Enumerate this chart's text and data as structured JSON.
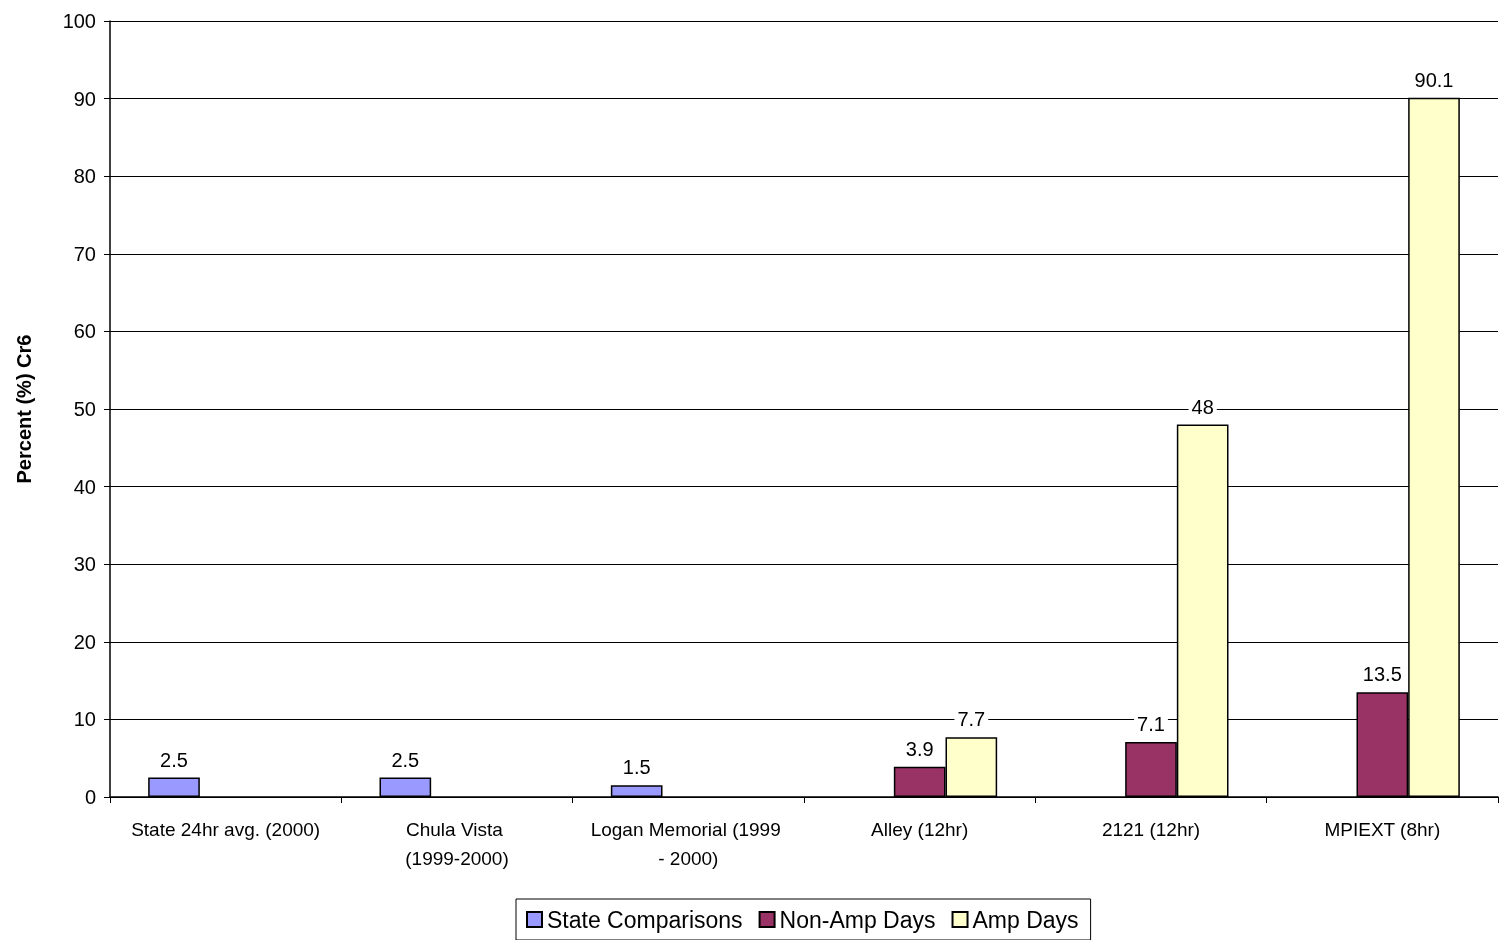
{
  "chart_data": {
    "type": "bar",
    "ylabel": "Percent (%) Cr6",
    "categories": [
      "State 24hr avg. (2000)",
      "Chula Vista (1999-2000)",
      "Logan Memorial (1999 - 2000)",
      "Alley (12hr)",
      "2121 (12hr)",
      "MPIEXT (8hr)"
    ],
    "series": [
      {
        "name": "State Comparisons",
        "color": "#9999ff",
        "values": [
          2.5,
          2.5,
          1.5,
          null,
          null,
          null
        ]
      },
      {
        "name": "Non-Amp Days",
        "color": "#993366",
        "values": [
          null,
          null,
          null,
          3.9,
          7.1,
          13.5
        ]
      },
      {
        "name": "Amp Days",
        "color": "#ffffcc",
        "values": [
          null,
          null,
          null,
          7.7,
          48,
          90.1
        ]
      }
    ],
    "ylim": [
      0,
      100
    ],
    "yticks": [
      0,
      10,
      20,
      30,
      40,
      50,
      60,
      70,
      80,
      90,
      100
    ],
    "grid": "y",
    "legend": "bottom",
    "data_labels": true
  }
}
